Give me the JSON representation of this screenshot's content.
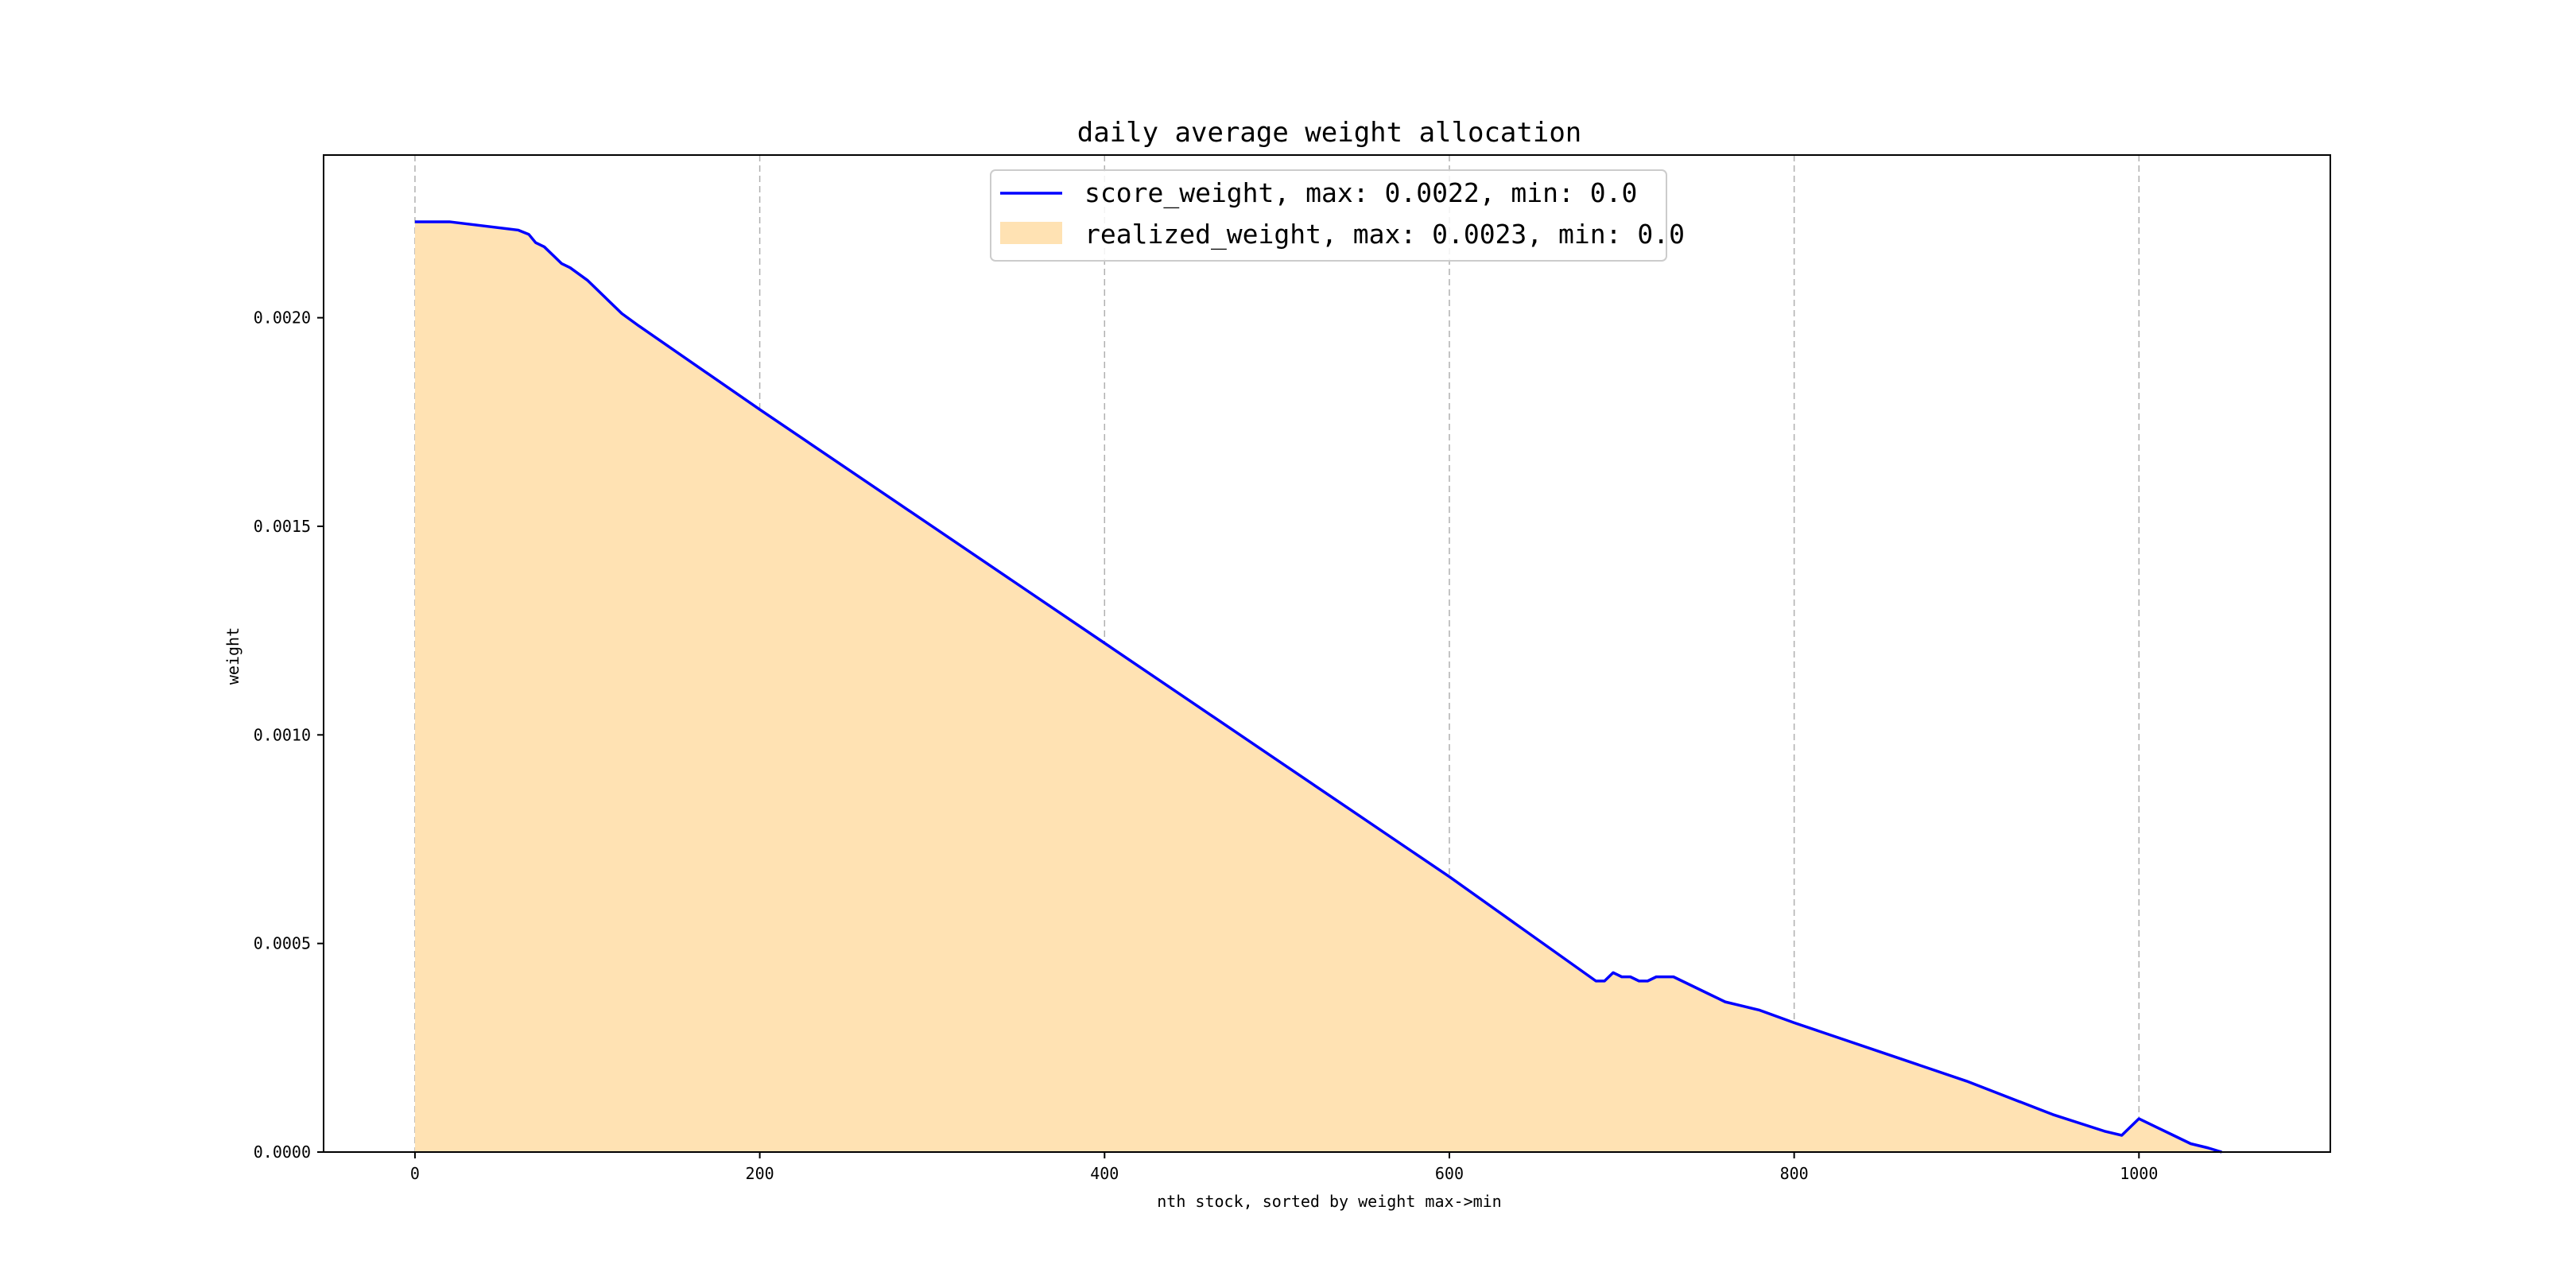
{
  "chart_data": {
    "type": "area",
    "title": "daily average weight allocation",
    "xlabel": "nth stock, sorted by weight max->min",
    "ylabel": "weight",
    "xlim": [
      -53,
      1111
    ],
    "ylim": [
      0.0,
      0.00239
    ],
    "xticks": [
      "0",
      "200",
      "400",
      "600",
      "800",
      "1000"
    ],
    "yticks": [
      "0.0000",
      "0.0005",
      "0.0010",
      "0.0015",
      "0.0020"
    ],
    "grid": "x-dashed",
    "legend_position": "upper center",
    "colors": {
      "line": "#0000ff",
      "fill": "#ffe2b3",
      "grid": "#b0b0b0"
    },
    "series": [
      {
        "name": "score_weight, max: 0.0022, min: 0.0",
        "kind": "line",
        "x": [
          0,
          20,
          40,
          60,
          66,
          70,
          75,
          80,
          85,
          90,
          100,
          110,
          120,
          130,
          200,
          300,
          400,
          500,
          600,
          685,
          690,
          695,
          700,
          705,
          710,
          715,
          720,
          725,
          730,
          740,
          750,
          760,
          770,
          780,
          800,
          850,
          900,
          950,
          980,
          990,
          995,
          1000,
          1005,
          1010,
          1020,
          1030,
          1040,
          1048
        ],
        "y": [
          0.00223,
          0.00223,
          0.00222,
          0.00221,
          0.0022,
          0.00218,
          0.00217,
          0.00215,
          0.00213,
          0.00212,
          0.00209,
          0.00205,
          0.00201,
          0.00198,
          0.00178,
          0.0015,
          0.00122,
          0.00094,
          0.00066,
          0.00041,
          0.00041,
          0.00043,
          0.00042,
          0.00042,
          0.00041,
          0.00041,
          0.00042,
          0.00042,
          0.00042,
          0.0004,
          0.00038,
          0.00036,
          0.00035,
          0.00034,
          0.00031,
          0.00024,
          0.00017,
          9e-05,
          5e-05,
          4e-05,
          6e-05,
          8e-05,
          7e-05,
          6e-05,
          4e-05,
          2e-05,
          1e-05,
          0.0
        ]
      },
      {
        "name": "realized_weight, max: 0.0023, min: 0.0",
        "kind": "area",
        "x": [
          0,
          20,
          40,
          60,
          66,
          70,
          75,
          80,
          85,
          90,
          100,
          110,
          120,
          130,
          200,
          300,
          400,
          500,
          600,
          685,
          690,
          695,
          700,
          705,
          710,
          715,
          720,
          725,
          730,
          740,
          750,
          760,
          770,
          780,
          800,
          850,
          900,
          950,
          980,
          990,
          995,
          1000,
          1005,
          1010,
          1020,
          1030,
          1040,
          1048
        ],
        "y": [
          0.00223,
          0.00223,
          0.00222,
          0.00221,
          0.0022,
          0.00218,
          0.00217,
          0.00215,
          0.00213,
          0.00212,
          0.00209,
          0.00205,
          0.00201,
          0.00198,
          0.00178,
          0.0015,
          0.00122,
          0.00094,
          0.00066,
          0.00041,
          0.00041,
          0.00043,
          0.00042,
          0.00042,
          0.00041,
          0.00041,
          0.00042,
          0.00042,
          0.00042,
          0.0004,
          0.00038,
          0.00036,
          0.00035,
          0.00034,
          0.00031,
          0.00024,
          0.00017,
          9e-05,
          5e-05,
          4e-05,
          6e-05,
          8e-05,
          7e-05,
          6e-05,
          4e-05,
          2e-05,
          1e-05,
          0.0
        ]
      }
    ]
  }
}
